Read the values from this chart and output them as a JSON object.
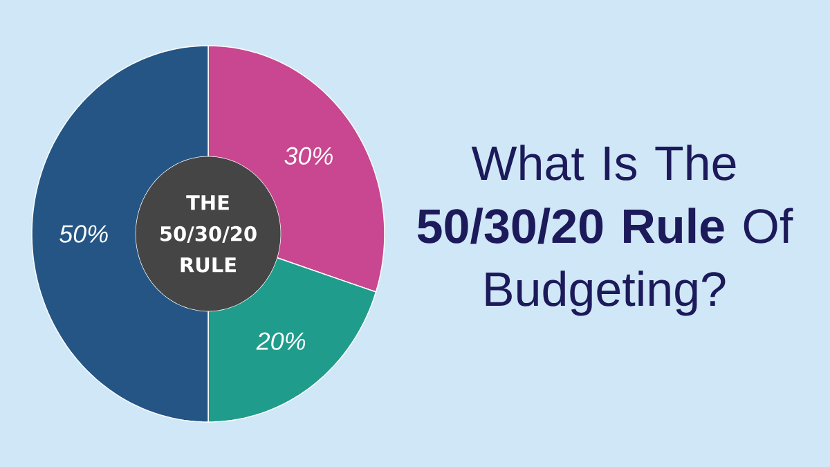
{
  "chart_data": {
    "type": "donut",
    "title": "What Is The\n**50/30/20 Rule** Of\nBudgeting?",
    "categories": [
      null,
      null,
      null
    ],
    "values": [
      30,
      20,
      50
    ],
    "colors": [
      "#c94690",
      "#1f9c8c",
      "#255585"
    ],
    "value_labels": [
      "30%",
      "20%",
      "50%"
    ],
    "annotations": [
      "THE 50/30/20 RULE"
    ]
  }
}
